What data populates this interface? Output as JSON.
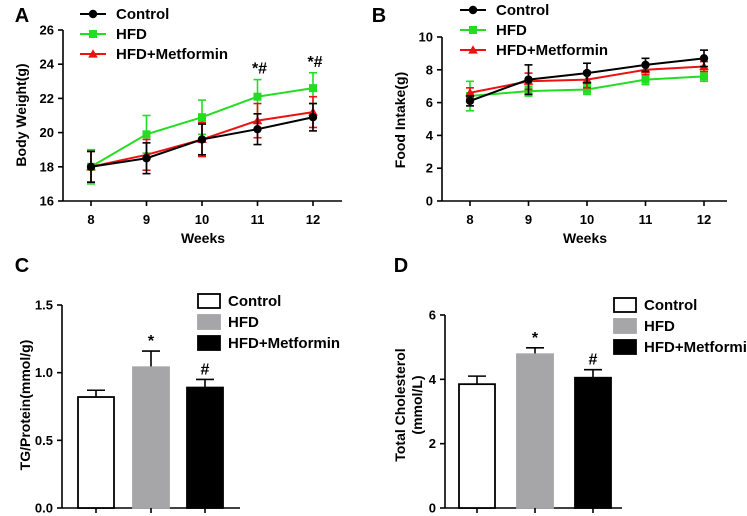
{
  "colors": {
    "control": "#000000",
    "hfd": "#22dd22",
    "metformin": "#ee1111",
    "hfd_bar": "#a6a6a8"
  },
  "chart_data": [
    {
      "panel": "A",
      "type": "line",
      "xlabel": "Weeks",
      "ylabel": "Body Weight(g)",
      "x": [
        8,
        9,
        10,
        11,
        12
      ],
      "ylim": [
        16,
        26
      ],
      "yticks": [
        16,
        18,
        20,
        22,
        24,
        26
      ],
      "legend_position": "top-left",
      "series": [
        {
          "name": "Control",
          "key": "control",
          "marker": "circle",
          "values": [
            18.0,
            18.5,
            19.6,
            20.2,
            20.9
          ],
          "errors": [
            0.9,
            0.9,
            0.9,
            0.9,
            0.8
          ]
        },
        {
          "name": "HFD",
          "key": "hfd",
          "marker": "square",
          "values": [
            18.0,
            19.9,
            20.9,
            22.1,
            22.6
          ],
          "errors": [
            1.0,
            1.1,
            1.0,
            1.0,
            0.9
          ]
        },
        {
          "name": "HFD+Metformin",
          "key": "metformin",
          "marker": "triangle",
          "values": [
            18.0,
            18.7,
            19.6,
            20.7,
            21.2
          ],
          "errors": [
            0.9,
            0.9,
            1.0,
            1.0,
            0.9
          ]
        }
      ],
      "annotations": [
        {
          "x": 11,
          "text": "*#"
        },
        {
          "x": 12,
          "text": "*#"
        }
      ]
    },
    {
      "panel": "B",
      "type": "line",
      "xlabel": "Weeks",
      "ylabel": "Food Intake(g)",
      "x": [
        8,
        9,
        10,
        11,
        12
      ],
      "ylim": [
        0,
        10
      ],
      "yticks": [
        0,
        2,
        4,
        6,
        8,
        10
      ],
      "legend_position": "top-left",
      "series": [
        {
          "name": "Control",
          "key": "control",
          "marker": "circle",
          "values": [
            6.1,
            7.4,
            7.8,
            8.3,
            8.7
          ],
          "errors": [
            0.3,
            0.9,
            0.6,
            0.4,
            0.5
          ]
        },
        {
          "name": "HFD",
          "key": "hfd",
          "marker": "square",
          "values": [
            6.4,
            6.7,
            6.8,
            7.4,
            7.6
          ],
          "errors": [
            0.9,
            0.3,
            0.3,
            0.3,
            0.3
          ]
        },
        {
          "name": "HFD+Metformin",
          "key": "metformin",
          "marker": "triangle",
          "values": [
            6.6,
            7.3,
            7.4,
            8.0,
            8.2
          ],
          "errors": [
            0.3,
            0.5,
            0.5,
            0.3,
            0.3
          ]
        }
      ]
    },
    {
      "panel": "C",
      "type": "bar",
      "ylabel": "TG/Protein(mmol/g)",
      "categories": [
        "Control",
        "HFD",
        "HFD+Metformin"
      ],
      "ylim": [
        0.0,
        1.5
      ],
      "yticks": [
        "0.0",
        "0.5",
        "1.0",
        "1.5"
      ],
      "legend_position": "top-right",
      "values": [
        0.82,
        1.04,
        0.89
      ],
      "errors": [
        0.05,
        0.12,
        0.06
      ],
      "styles": [
        "control",
        "hfd",
        "metformin"
      ],
      "bar_annotations": [
        "",
        "*",
        "#"
      ]
    },
    {
      "panel": "D",
      "type": "bar",
      "ylabel": "Total Cholesterol (mmol/L)",
      "ylabel_lines": [
        "Total Cholesterol",
        "(mmol/L)"
      ],
      "categories": [
        "Control",
        "HFD",
        "HFD+Metformin"
      ],
      "ylim": [
        0,
        6
      ],
      "yticks": [
        "0",
        "2",
        "4",
        "6"
      ],
      "legend_position": "top-right",
      "values": [
        3.85,
        4.78,
        4.05
      ],
      "errors": [
        0.25,
        0.2,
        0.25
      ],
      "styles": [
        "control",
        "hfd",
        "metformin"
      ],
      "bar_annotations": [
        "",
        "*",
        "#"
      ]
    }
  ]
}
